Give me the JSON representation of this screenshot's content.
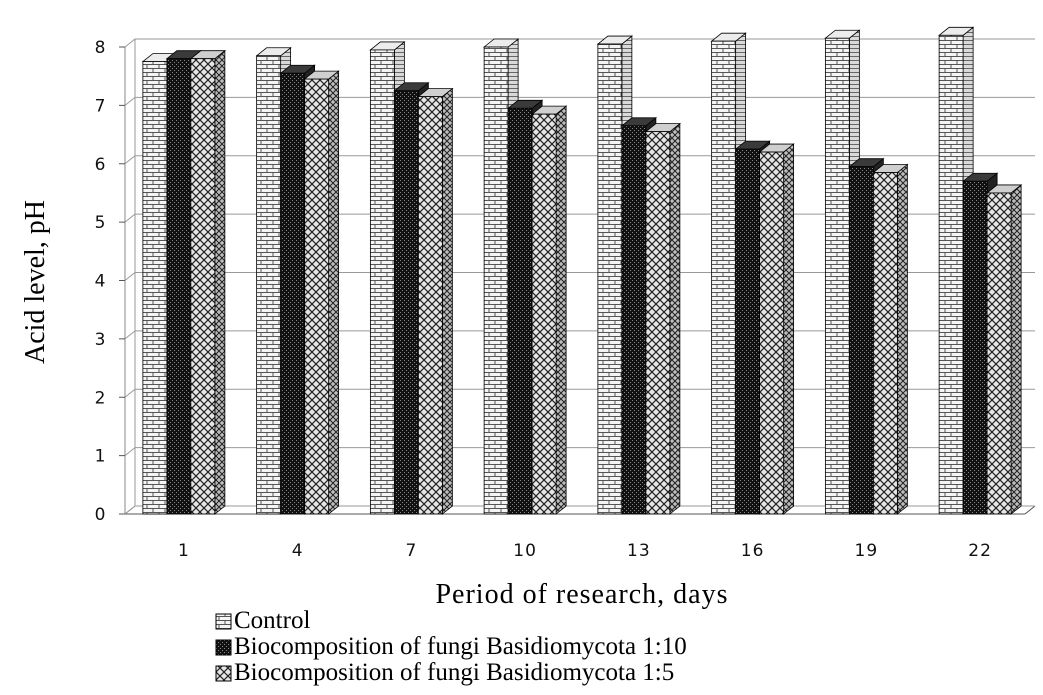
{
  "chart_data": {
    "type": "bar",
    "xlabel": "Period of research, days",
    "ylabel": "Acid level, pH",
    "ylim": [
      0,
      8
    ],
    "yticks": [
      0,
      1,
      2,
      3,
      4,
      5,
      6,
      7,
      8
    ],
    "categories": [
      "1",
      "4",
      "7",
      "10",
      "13",
      "16",
      "19",
      "22"
    ],
    "series": [
      {
        "name": "Control",
        "values": [
          7.75,
          7.85,
          7.95,
          8.0,
          8.05,
          8.1,
          8.15,
          8.2
        ]
      },
      {
        "name": "Biocomposition of fungi Basidiomycota 1:10",
        "values": [
          7.8,
          7.55,
          7.25,
          6.95,
          6.65,
          6.25,
          5.95,
          5.7
        ]
      },
      {
        "name": "Biocomposition of fungi Basidiomycota 1:5",
        "values": [
          7.8,
          7.45,
          7.15,
          6.85,
          6.55,
          6.2,
          5.85,
          5.5
        ]
      }
    ],
    "grid": true,
    "legend_position": "bottom-left",
    "bar_style": "3d"
  }
}
